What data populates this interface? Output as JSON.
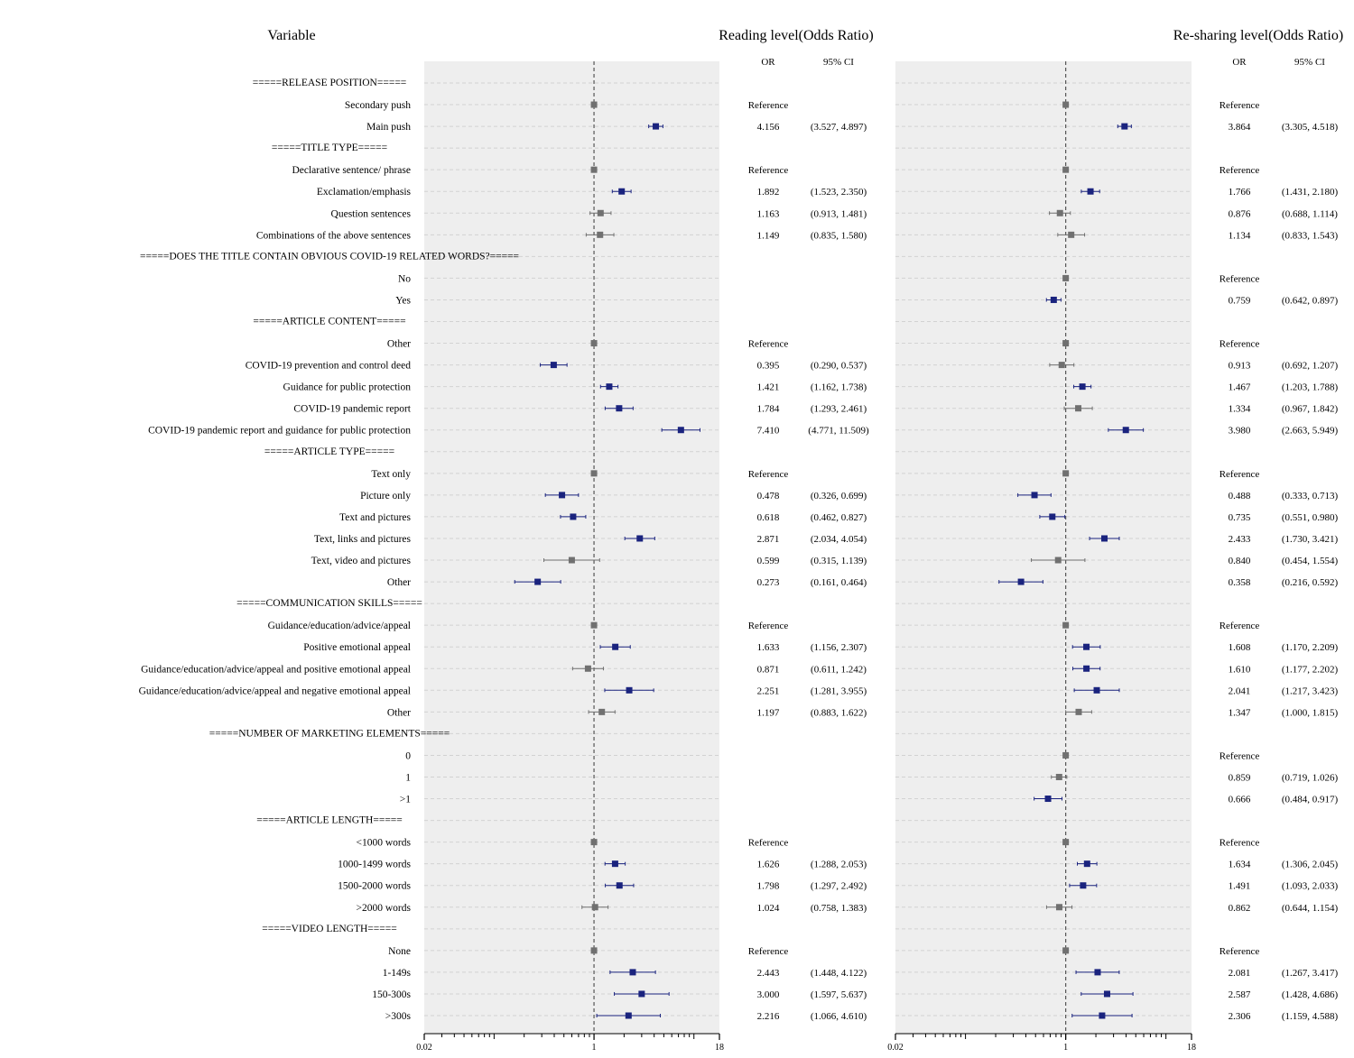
{
  "headers": {
    "variable": "Variable",
    "reading": "Reading level(Odds Ratio)",
    "resharing": "Re-sharing level(Odds Ratio)",
    "or": "OR",
    "ci": "95% CI"
  },
  "colors": {
    "significant": "#1a237e",
    "nonsignificant": "#707070",
    "panel_bg": "#eeeeee",
    "grid": "#d2d2d2"
  },
  "chart_data": [
    {
      "type": "forest",
      "title": "Reading level(Odds Ratio)",
      "xscale": "log",
      "xlim": [
        0.02,
        18
      ],
      "xticks": [
        "0.02",
        "1",
        "18"
      ],
      "reference_line": 1
    },
    {
      "type": "forest",
      "title": "Re-sharing level(Odds Ratio)",
      "xscale": "log",
      "xlim": [
        0.02,
        18
      ],
      "xticks": [
        "0.02",
        "1",
        "18"
      ],
      "reference_line": 1
    }
  ],
  "rows": [
    {
      "label": "=====RELEASE POSITION=====",
      "header": true
    },
    {
      "label": "Secondary push",
      "r": {
        "or": 1,
        "lo": 1,
        "hi": 1,
        "or_text": "Reference",
        "ci_text": ""
      },
      "s": {
        "or": 1,
        "lo": 1,
        "hi": 1,
        "or_text": "Reference",
        "ci_text": ""
      }
    },
    {
      "label": "Main push",
      "r": {
        "or": 4.156,
        "lo": 3.527,
        "hi": 4.897,
        "or_text": "4.156",
        "ci_text": "(3.527, 4.897)"
      },
      "s": {
        "or": 3.864,
        "lo": 3.305,
        "hi": 4.518,
        "or_text": "3.864",
        "ci_text": "(3.305, 4.518)"
      }
    },
    {
      "label": "=====TITLE TYPE=====",
      "header": true
    },
    {
      "label": "Declarative sentence/ phrase",
      "r": {
        "or": 1,
        "lo": 1,
        "hi": 1,
        "or_text": "Reference",
        "ci_text": ""
      },
      "s": {
        "or": 1,
        "lo": 1,
        "hi": 1,
        "or_text": "Reference",
        "ci_text": ""
      }
    },
    {
      "label": "Exclamation/emphasis",
      "r": {
        "or": 1.892,
        "lo": 1.523,
        "hi": 2.35,
        "or_text": "1.892",
        "ci_text": "(1.523, 2.350)"
      },
      "s": {
        "or": 1.766,
        "lo": 1.431,
        "hi": 2.18,
        "or_text": "1.766",
        "ci_text": "(1.431, 2.180)"
      }
    },
    {
      "label": "Question sentences",
      "r": {
        "or": 1.163,
        "lo": 0.913,
        "hi": 1.481,
        "or_text": "1.163",
        "ci_text": "(0.913, 1.481)"
      },
      "s": {
        "or": 0.876,
        "lo": 0.688,
        "hi": 1.114,
        "or_text": "0.876",
        "ci_text": "(0.688, 1.114)"
      }
    },
    {
      "label": "Combinations of the above sentences",
      "r": {
        "or": 1.149,
        "lo": 0.835,
        "hi": 1.58,
        "or_text": "1.149",
        "ci_text": "(0.835, 1.580)"
      },
      "s": {
        "or": 1.134,
        "lo": 0.833,
        "hi": 1.543,
        "or_text": "1.134",
        "ci_text": "(0.833, 1.543)"
      }
    },
    {
      "label": "=====DOES THE TITLE CONTAIN OBVIOUS COVID-19 RELATED WORDS?=====",
      "header": true
    },
    {
      "label": "No",
      "r": null,
      "s": {
        "or": 1,
        "lo": 1,
        "hi": 1,
        "or_text": "Reference",
        "ci_text": ""
      }
    },
    {
      "label": "Yes",
      "r": null,
      "s": {
        "or": 0.759,
        "lo": 0.642,
        "hi": 0.897,
        "or_text": "0.759",
        "ci_text": "(0.642, 0.897)"
      }
    },
    {
      "label": "=====ARTICLE CONTENT=====",
      "header": true
    },
    {
      "label": "Other",
      "r": {
        "or": 1,
        "lo": 1,
        "hi": 1,
        "or_text": "Reference",
        "ci_text": ""
      },
      "s": {
        "or": 1,
        "lo": 1,
        "hi": 1,
        "or_text": "Reference",
        "ci_text": ""
      }
    },
    {
      "label": "COVID-19 prevention and control deed",
      "r": {
        "or": 0.395,
        "lo": 0.29,
        "hi": 0.537,
        "or_text": "0.395",
        "ci_text": "(0.290, 0.537)"
      },
      "s": {
        "or": 0.913,
        "lo": 0.692,
        "hi": 1.207,
        "or_text": "0.913",
        "ci_text": "(0.692, 1.207)"
      }
    },
    {
      "label": "Guidance for public protection",
      "r": {
        "or": 1.421,
        "lo": 1.162,
        "hi": 1.738,
        "or_text": "1.421",
        "ci_text": "(1.162, 1.738)"
      },
      "s": {
        "or": 1.467,
        "lo": 1.203,
        "hi": 1.788,
        "or_text": "1.467",
        "ci_text": "(1.203, 1.788)"
      }
    },
    {
      "label": "COVID-19 pandemic report",
      "r": {
        "or": 1.784,
        "lo": 1.293,
        "hi": 2.461,
        "or_text": "1.784",
        "ci_text": "(1.293, 2.461)"
      },
      "s": {
        "or": 1.334,
        "lo": 0.967,
        "hi": 1.842,
        "or_text": "1.334",
        "ci_text": "(0.967, 1.842)"
      }
    },
    {
      "label": "COVID-19 pandemic report and guidance for public protection",
      "r": {
        "or": 7.41,
        "lo": 4.771,
        "hi": 11.509,
        "or_text": "7.410",
        "ci_text": "(4.771, 11.509)"
      },
      "s": {
        "or": 3.98,
        "lo": 2.663,
        "hi": 5.949,
        "or_text": "3.980",
        "ci_text": "(2.663, 5.949)"
      }
    },
    {
      "label": "=====ARTICLE TYPE=====",
      "header": true
    },
    {
      "label": "Text only",
      "r": {
        "or": 1,
        "lo": 1,
        "hi": 1,
        "or_text": "Reference",
        "ci_text": ""
      },
      "s": {
        "or": 1,
        "lo": 1,
        "hi": 1,
        "or_text": "Reference",
        "ci_text": ""
      }
    },
    {
      "label": "Picture only",
      "r": {
        "or": 0.478,
        "lo": 0.326,
        "hi": 0.699,
        "or_text": "0.478",
        "ci_text": "(0.326, 0.699)"
      },
      "s": {
        "or": 0.488,
        "lo": 0.333,
        "hi": 0.713,
        "or_text": "0.488",
        "ci_text": "(0.333, 0.713)"
      }
    },
    {
      "label": "Text and pictures",
      "r": {
        "or": 0.618,
        "lo": 0.462,
        "hi": 0.827,
        "or_text": "0.618",
        "ci_text": "(0.462, 0.827)"
      },
      "s": {
        "or": 0.735,
        "lo": 0.551,
        "hi": 0.98,
        "or_text": "0.735",
        "ci_text": "(0.551, 0.980)"
      }
    },
    {
      "label": "Text, links and pictures",
      "r": {
        "or": 2.871,
        "lo": 2.034,
        "hi": 4.054,
        "or_text": "2.871",
        "ci_text": "(2.034, 4.054)"
      },
      "s": {
        "or": 2.433,
        "lo": 1.73,
        "hi": 3.421,
        "or_text": "2.433",
        "ci_text": "(1.730, 3.421)"
      }
    },
    {
      "label": "Text, video and pictures",
      "r": {
        "or": 0.599,
        "lo": 0.315,
        "hi": 1.139,
        "or_text": "0.599",
        "ci_text": "(0.315, 1.139)"
      },
      "s": {
        "or": 0.84,
        "lo": 0.454,
        "hi": 1.554,
        "or_text": "0.840",
        "ci_text": "(0.454, 1.554)"
      }
    },
    {
      "label": "Other",
      "r": {
        "or": 0.273,
        "lo": 0.161,
        "hi": 0.464,
        "or_text": "0.273",
        "ci_text": "(0.161, 0.464)"
      },
      "s": {
        "or": 0.358,
        "lo": 0.216,
        "hi": 0.592,
        "or_text": "0.358",
        "ci_text": "(0.216, 0.592)"
      }
    },
    {
      "label": "=====COMMUNICATION SKILLS=====",
      "header": true
    },
    {
      "label": "Guidance/education/advice/appeal",
      "r": {
        "or": 1,
        "lo": 1,
        "hi": 1,
        "or_text": "Reference",
        "ci_text": ""
      },
      "s": {
        "or": 1,
        "lo": 1,
        "hi": 1,
        "or_text": "Reference",
        "ci_text": ""
      }
    },
    {
      "label": "Positive emotional appeal",
      "r": {
        "or": 1.633,
        "lo": 1.156,
        "hi": 2.307,
        "or_text": "1.633",
        "ci_text": "(1.156, 2.307)"
      },
      "s": {
        "or": 1.608,
        "lo": 1.17,
        "hi": 2.209,
        "or_text": "1.608",
        "ci_text": "(1.170, 2.209)"
      }
    },
    {
      "label": "Guidance/education/advice/appeal and positive emotional appeal",
      "r": {
        "or": 0.871,
        "lo": 0.611,
        "hi": 1.242,
        "or_text": "0.871",
        "ci_text": "(0.611, 1.242)"
      },
      "s": {
        "or": 1.61,
        "lo": 1.177,
        "hi": 2.202,
        "or_text": "1.610",
        "ci_text": "(1.177, 2.202)"
      }
    },
    {
      "label": "Guidance/education/advice/appeal and negative emotional appeal",
      "r": {
        "or": 2.251,
        "lo": 1.281,
        "hi": 3.955,
        "or_text": "2.251",
        "ci_text": "(1.281, 3.955)"
      },
      "s": {
        "or": 2.041,
        "lo": 1.217,
        "hi": 3.423,
        "or_text": "2.041",
        "ci_text": "(1.217, 3.423)"
      }
    },
    {
      "label": "Other",
      "r": {
        "or": 1.197,
        "lo": 0.883,
        "hi": 1.622,
        "or_text": "1.197",
        "ci_text": "(0.883, 1.622)"
      },
      "s": {
        "or": 1.347,
        "lo": 1.0,
        "hi": 1.815,
        "or_text": "1.347",
        "ci_text": "(1.000, 1.815)"
      }
    },
    {
      "label": "=====NUMBER OF MARKETING ELEMENTS=====",
      "header": true
    },
    {
      "label": "0",
      "r": null,
      "s": {
        "or": 1,
        "lo": 1,
        "hi": 1,
        "or_text": "Reference",
        "ci_text": ""
      }
    },
    {
      "label": "1",
      "r": null,
      "s": {
        "or": 0.859,
        "lo": 0.719,
        "hi": 1.026,
        "or_text": "0.859",
        "ci_text": "(0.719, 1.026)"
      }
    },
    {
      "label": ">1",
      "r": null,
      "s": {
        "or": 0.666,
        "lo": 0.484,
        "hi": 0.917,
        "or_text": "0.666",
        "ci_text": "(0.484, 0.917)"
      }
    },
    {
      "label": "=====ARTICLE LENGTH=====",
      "header": true
    },
    {
      "label": "<1000 words",
      "r": {
        "or": 1,
        "lo": 1,
        "hi": 1,
        "or_text": "Reference",
        "ci_text": ""
      },
      "s": {
        "or": 1,
        "lo": 1,
        "hi": 1,
        "or_text": "Reference",
        "ci_text": ""
      }
    },
    {
      "label": "1000-1499 words",
      "r": {
        "or": 1.626,
        "lo": 1.288,
        "hi": 2.053,
        "or_text": "1.626",
        "ci_text": "(1.288, 2.053)"
      },
      "s": {
        "or": 1.634,
        "lo": 1.306,
        "hi": 2.045,
        "or_text": "1.634",
        "ci_text": "(1.306, 2.045)"
      }
    },
    {
      "label": "1500-2000 words",
      "r": {
        "or": 1.798,
        "lo": 1.297,
        "hi": 2.492,
        "or_text": "1.798",
        "ci_text": "(1.297, 2.492)"
      },
      "s": {
        "or": 1.491,
        "lo": 1.093,
        "hi": 2.033,
        "or_text": "1.491",
        "ci_text": "(1.093, 2.033)"
      }
    },
    {
      "label": ">2000 words",
      "r": {
        "or": 1.024,
        "lo": 0.758,
        "hi": 1.383,
        "or_text": "1.024",
        "ci_text": "(0.758, 1.383)"
      },
      "s": {
        "or": 0.862,
        "lo": 0.644,
        "hi": 1.154,
        "or_text": "0.862",
        "ci_text": "(0.644, 1.154)"
      }
    },
    {
      "label": "=====VIDEO LENGTH=====",
      "header": true
    },
    {
      "label": "None",
      "r": {
        "or": 1,
        "lo": 1,
        "hi": 1,
        "or_text": "Reference",
        "ci_text": ""
      },
      "s": {
        "or": 1,
        "lo": 1,
        "hi": 1,
        "or_text": "Reference",
        "ci_text": ""
      }
    },
    {
      "label": "1-149s",
      "r": {
        "or": 2.443,
        "lo": 1.448,
        "hi": 4.122,
        "or_text": "2.443",
        "ci_text": "(1.448, 4.122)"
      },
      "s": {
        "or": 2.081,
        "lo": 1.267,
        "hi": 3.417,
        "or_text": "2.081",
        "ci_text": "(1.267, 3.417)"
      }
    },
    {
      "label": "150-300s",
      "r": {
        "or": 3.0,
        "lo": 1.597,
        "hi": 5.637,
        "or_text": "3.000",
        "ci_text": "(1.597, 5.637)"
      },
      "s": {
        "or": 2.587,
        "lo": 1.428,
        "hi": 4.686,
        "or_text": "2.587",
        "ci_text": "(1.428, 4.686)"
      }
    },
    {
      "label": ">300s",
      "r": {
        "or": 2.216,
        "lo": 1.066,
        "hi": 4.61,
        "or_text": "2.216",
        "ci_text": "(1.066, 4.610)"
      },
      "s": {
        "or": 2.306,
        "lo": 1.159,
        "hi": 4.588,
        "or_text": "2.306",
        "ci_text": "(1.159, 4.588)"
      }
    }
  ]
}
